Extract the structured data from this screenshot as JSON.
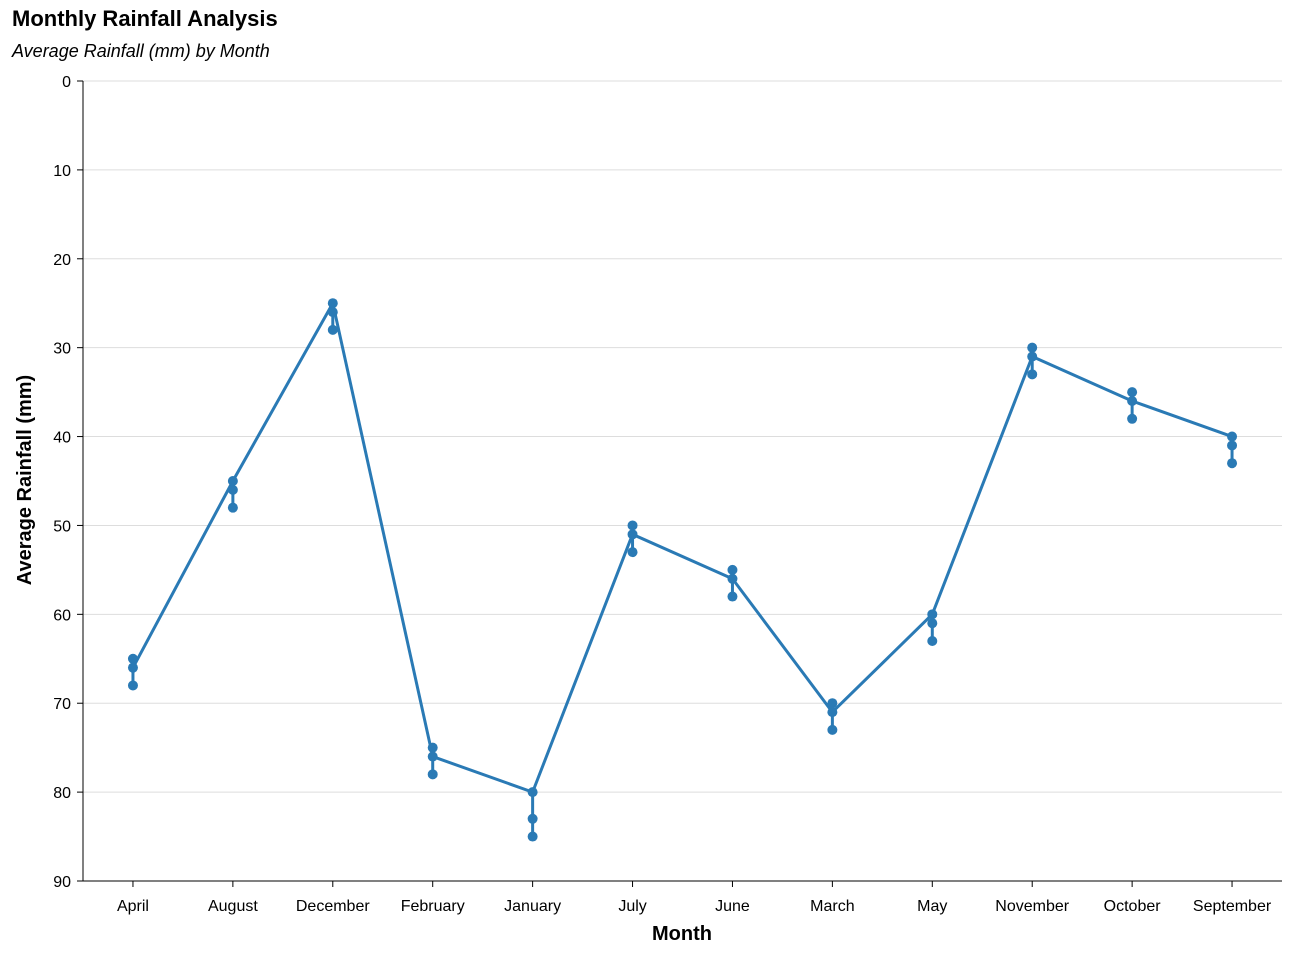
{
  "header": {
    "title": "Monthly Rainfall Analysis",
    "subtitle": "Average Rainfall (mm) by Month"
  },
  "colors": {
    "series": "#2a7ab5",
    "grid": "#dddddd",
    "axis": "#000000"
  },
  "chart_data": {
    "type": "line",
    "title": "Monthly Rainfall Analysis",
    "subtitle": "Average Rainfall (mm) by Month",
    "xlabel": "Month",
    "ylabel": "Average Rainfall (mm)",
    "y_reversed": true,
    "ylim": [
      0,
      90
    ],
    "yticks": [
      0,
      10,
      20,
      30,
      40,
      50,
      60,
      70,
      80,
      90
    ],
    "grid": true,
    "categories": [
      "April",
      "August",
      "December",
      "February",
      "January",
      "July",
      "June",
      "March",
      "May",
      "November",
      "October",
      "September"
    ],
    "series": [
      {
        "values": [
          66,
          45,
          25,
          76,
          80,
          51,
          56,
          71,
          60,
          31,
          36,
          40
        ]
      }
    ],
    "error_points": [
      [
        65,
        66,
        68
      ],
      [
        45,
        46,
        48
      ],
      [
        25,
        26,
        28
      ],
      [
        75,
        76,
        78
      ],
      [
        80,
        83,
        85
      ],
      [
        50,
        51,
        53
      ],
      [
        55,
        56,
        58
      ],
      [
        70,
        71,
        73
      ],
      [
        60,
        61,
        63
      ],
      [
        30,
        31,
        33
      ],
      [
        35,
        36,
        38
      ],
      [
        40,
        41,
        43
      ]
    ]
  }
}
